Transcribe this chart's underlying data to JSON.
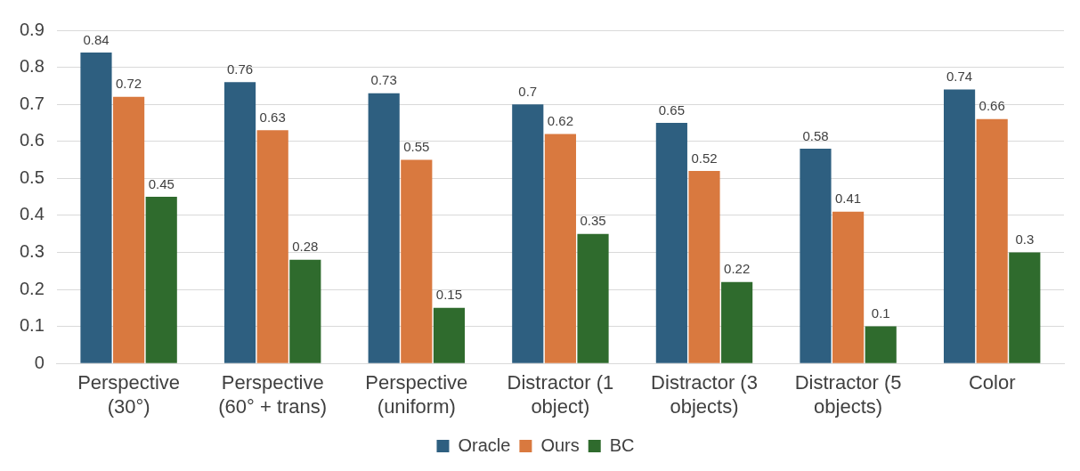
{
  "chart_data": {
    "type": "bar",
    "categories": [
      "Perspective (30°)",
      "Perspective (60° + trans)",
      "Perspective (uniform)",
      "Distractor (1 object)",
      "Distractor (3 objects)",
      "Distractor (5 objects)",
      "Color"
    ],
    "series": [
      {
        "name": "Oracle",
        "color": "#2e5f80",
        "values": [
          0.84,
          0.76,
          0.73,
          0.7,
          0.65,
          0.58,
          0.74
        ]
      },
      {
        "name": "Ours",
        "color": "#d9793f",
        "values": [
          0.72,
          0.63,
          0.55,
          0.62,
          0.52,
          0.41,
          0.66
        ]
      },
      {
        "name": "BC",
        "color": "#2f6b2d",
        "values": [
          0.45,
          0.28,
          0.15,
          0.35,
          0.22,
          0.1,
          0.3
        ]
      }
    ],
    "ylim": [
      0,
      0.9
    ],
    "yticks": [
      0,
      0.1,
      0.2,
      0.3,
      0.4,
      0.5,
      0.6,
      0.7,
      0.8,
      0.9
    ],
    "grid": "y",
    "legend": "bottom",
    "data_labels": true
  }
}
